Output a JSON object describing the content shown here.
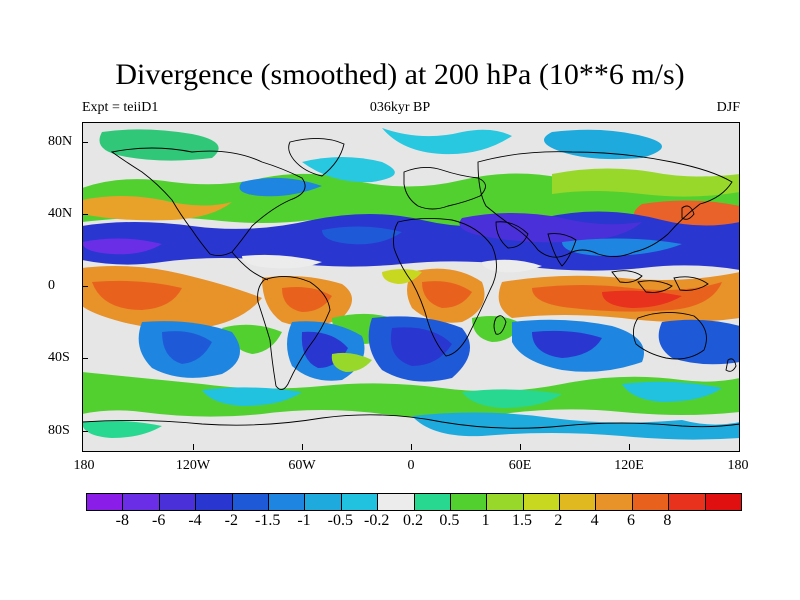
{
  "title": "Divergence (smoothed) at 200 hPa (10**6 m/s)",
  "subtitle_left": "Expt = teiiD1",
  "subtitle_center": "036kyr BP",
  "subtitle_right": "DJF",
  "y_labels": [
    "80N",
    "40N",
    "0",
    "40S",
    "80S"
  ],
  "x_labels": [
    "180",
    "120W",
    "60W",
    "0",
    "60E",
    "120E",
    "180"
  ],
  "colorbar": {
    "colors": [
      "#8a1ee8",
      "#6a2ee6",
      "#4a30d8",
      "#2a36d0",
      "#1e5ad8",
      "#1e86e0",
      "#1eaadc",
      "#20c2e0",
      "#ececec",
      "#28d890",
      "#52d030",
      "#98d82a",
      "#c8d820",
      "#e0b820",
      "#e8922a",
      "#e8621e",
      "#e8321e",
      "#e01010"
    ],
    "labels": [
      "-8",
      "-6",
      "-4",
      "-2",
      "-1.5",
      "-1",
      "-0.5",
      "-0.2",
      "0.2",
      "0.5",
      "1",
      "1.5",
      "2",
      "4",
      "6",
      "8"
    ]
  }
}
